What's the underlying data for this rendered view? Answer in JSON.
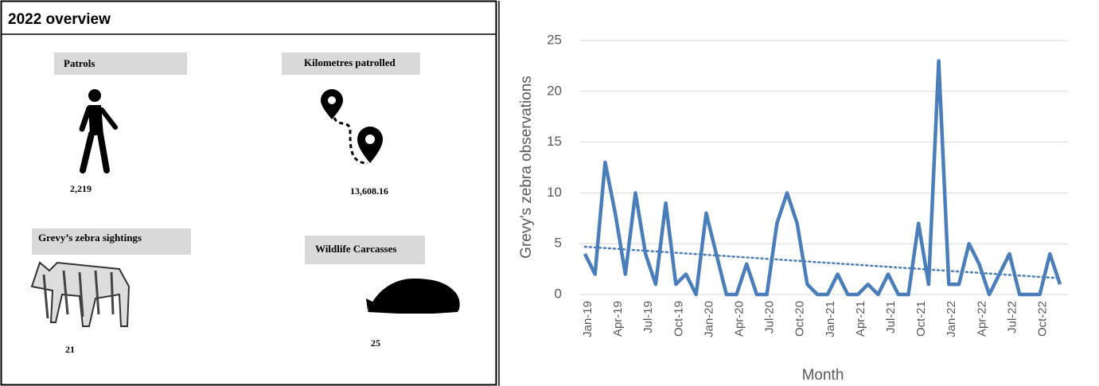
{
  "overview": {
    "title": "2022 overview",
    "items": [
      {
        "label": "Patrols",
        "value": "2,219"
      },
      {
        "label": "Kilometres patrolled",
        "value": "13,608.16"
      },
      {
        "label": "Grevy’s zebra sightings",
        "value": "21"
      },
      {
        "label": "Wildlife Carcasses",
        "value": "25"
      }
    ]
  },
  "chart_data": {
    "type": "line",
    "y_label": "Grevy's zebra observations",
    "x_label": "Month",
    "categories": [
      "Jan-19",
      null,
      null,
      "Apr-19",
      null,
      null,
      "Jul-19",
      null,
      null,
      "Oct-19",
      null,
      null,
      "Jan-20",
      null,
      null,
      "Apr-20",
      null,
      null,
      "Jul-20",
      null,
      null,
      "Oct-20",
      null,
      null,
      "Jan-21",
      null,
      null,
      "Apr-21",
      null,
      null,
      "Jul-21",
      null,
      null,
      "Oct-21",
      null,
      null,
      "Jan-22",
      null,
      null,
      "Apr-22",
      null,
      null,
      "Jul-22",
      null,
      null,
      "Oct-22",
      null,
      null
    ],
    "series": [
      {
        "color": "#4a7ebb",
        "values": [
          4,
          2,
          13,
          8,
          2,
          10,
          4,
          1,
          9,
          1,
          2,
          0,
          8,
          4,
          0,
          0,
          3,
          0,
          0,
          7,
          10,
          7,
          1,
          0,
          0,
          2,
          0,
          0,
          1,
          0,
          2,
          0,
          0,
          7,
          1,
          23,
          1,
          1,
          5,
          3,
          0,
          2,
          4,
          0,
          0,
          0,
          4,
          1
        ]
      }
    ],
    "trend_values": [
      4.7,
      1.6
    ],
    "ylim": [
      0,
      25
    ],
    "yticks": [
      0,
      5,
      10,
      15,
      20,
      25
    ],
    "grid": true
  }
}
